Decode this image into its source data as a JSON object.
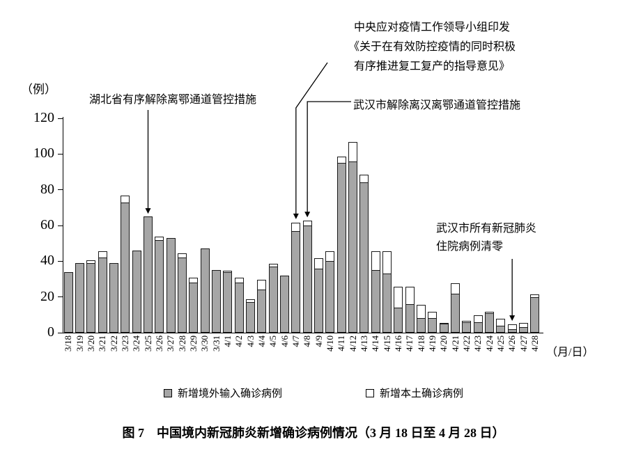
{
  "chart_data": {
    "type": "bar",
    "stacked": true,
    "title": "图 7　中国境内新冠肺炎新增确诊病例情况（3 月 18 日至 4 月 28 日）",
    "ylabel": "（例）",
    "xlabel": "（月/日）",
    "ylim": [
      0,
      120
    ],
    "yticks": [
      0,
      20,
      40,
      60,
      80,
      100,
      120
    ],
    "grid": false,
    "legend_position": "bottom",
    "categories": [
      "3/18",
      "3/19",
      "3/20",
      "3/21",
      "3/22",
      "3/23",
      "3/24",
      "3/25",
      "3/26",
      "3/27",
      "3/28",
      "3/29",
      "3/30",
      "3/31",
      "4/1",
      "4/2",
      "4/3",
      "4/4",
      "4/5",
      "4/6",
      "4/7",
      "4/8",
      "4/9",
      "4/10",
      "4/11",
      "4/12",
      "4/13",
      "4/14",
      "4/15",
      "4/16",
      "4/17",
      "4/18",
      "4/19",
      "4/20",
      "4/21",
      "4/22",
      "4/23",
      "4/24",
      "4/25",
      "4/26",
      "4/27",
      "4/28"
    ],
    "series": [
      {
        "name": "新增境外输入确诊病例",
        "color": "#a6a6a6",
        "values": [
          34,
          39,
          39,
          42,
          39,
          73,
          46,
          65,
          52,
          53,
          42,
          28,
          47,
          35,
          34,
          28,
          17,
          24,
          37,
          32,
          57,
          60,
          36,
          40,
          95,
          96,
          84,
          35,
          33,
          14,
          16,
          8,
          8,
          5,
          22,
          6,
          6,
          11,
          4,
          2,
          3,
          20
        ]
      },
      {
        "name": "新增本土确诊病例",
        "color": "#ffffff",
        "values": [
          0,
          0,
          2,
          4,
          0,
          4,
          0,
          0,
          2,
          0,
          3,
          3,
          0,
          0,
          1,
          3,
          2,
          6,
          2,
          0,
          5,
          3,
          6,
          6,
          4,
          11,
          5,
          11,
          13,
          12,
          10,
          8,
          4,
          1,
          6,
          1,
          4,
          1,
          4,
          3,
          3,
          2
        ]
      }
    ],
    "annotations": [
      {
        "text": "湖北省有序解除离鄂通道管控措施",
        "target": "3/25"
      },
      {
        "lines": [
          "中央应对疫情工作领导小组印发",
          "《关于在有效防控疫情的同时积极",
          "有序推进复工复产的指导意见》"
        ],
        "target": "4/7"
      },
      {
        "text": "武汉市解除离汉离鄂通道管控措施",
        "target": "4/8"
      },
      {
        "lines": [
          "武汉市所有新冠肺炎",
          "住院病例清零"
        ],
        "target": "4/26"
      }
    ]
  }
}
